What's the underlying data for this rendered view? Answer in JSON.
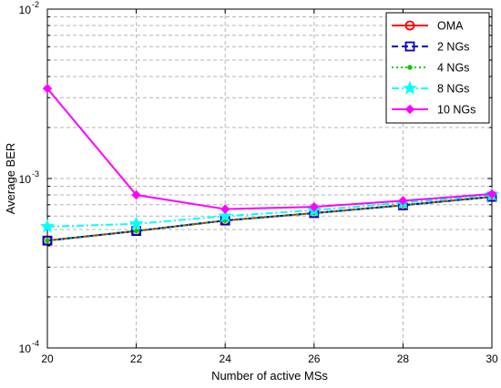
{
  "chart_data": {
    "type": "line",
    "title": "",
    "xlabel": "Number of active MSs",
    "ylabel": "Average BER",
    "x": [
      20,
      22,
      24,
      26,
      28,
      30
    ],
    "xlim": [
      20,
      30
    ],
    "ylim": [
      0.0001,
      0.01
    ],
    "yscale": "log",
    "grid": true,
    "legend_position": "top-right",
    "xticks": [
      "20",
      "22",
      "24",
      "26",
      "28",
      "30"
    ],
    "yticks": [
      {
        "base": "10",
        "exp": "-4"
      },
      {
        "base": "10",
        "exp": "-3"
      },
      {
        "base": "10",
        "exp": "-2"
      }
    ],
    "series": [
      {
        "name": "OMA",
        "values": [
          0.00043,
          0.00049,
          0.000565,
          0.000625,
          0.000695,
          0.00078
        ],
        "color": "#ff0000",
        "dash": "solid",
        "marker": "circle"
      },
      {
        "name": "2 NGs",
        "values": [
          0.00043,
          0.00049,
          0.000565,
          0.000625,
          0.000695,
          0.00078
        ],
        "color": "#0000cc",
        "dash": "dashed",
        "marker": "square"
      },
      {
        "name": "4 NGs",
        "values": [
          0.00043,
          0.00049,
          0.000565,
          0.000625,
          0.000695,
          0.00078
        ],
        "color": "#00cc00",
        "dash": "dotted",
        "marker": "dot"
      },
      {
        "name": "8 NGs",
        "values": [
          0.00052,
          0.00054,
          0.0006,
          0.00065,
          0.00072,
          0.0008
        ],
        "color": "#00ffff",
        "dash": "dashdot",
        "marker": "star"
      },
      {
        "name": "10 NGs",
        "values": [
          0.0034,
          0.0008,
          0.00066,
          0.00068,
          0.00074,
          0.00081
        ],
        "color": "#ff00ff",
        "dash": "solid",
        "marker": "diamond"
      }
    ]
  }
}
